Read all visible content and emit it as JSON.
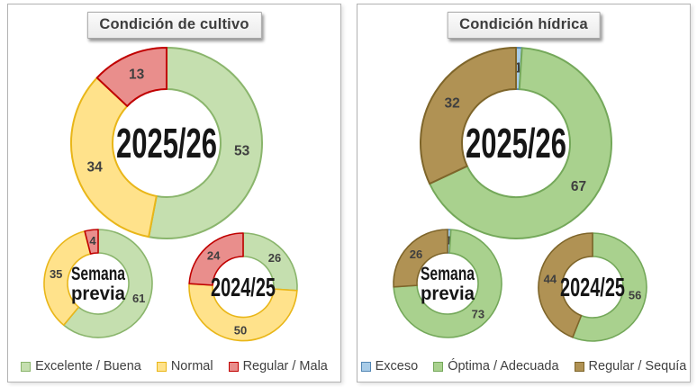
{
  "panels": [
    {
      "title": "Condición de cultivo",
      "legend_position": "bottom",
      "legend": [
        {
          "label": "Excelente / Buena",
          "fill": "#c5dfaf",
          "stroke": "#8ab56c"
        },
        {
          "label": "Normal",
          "fill": "#ffe28b",
          "stroke": "#e9b618"
        },
        {
          "label": "Regular / Mala",
          "fill": "#e98e8c",
          "stroke": "#c00000"
        }
      ]
    },
    {
      "title": "Condición hídrica",
      "legend_position": "bottom",
      "legend": [
        {
          "label": "Exceso",
          "fill": "#a8cce8",
          "stroke": "#5286b4"
        },
        {
          "label": "Óptima / Adecuada",
          "fill": "#a9d18e",
          "stroke": "#74a85a"
        },
        {
          "label": "Regular / Sequía",
          "fill": "#b09254",
          "stroke": "#7e652a"
        }
      ]
    }
  ],
  "chart_data": [
    {
      "type": "donut",
      "panel": 0,
      "slot": "main",
      "center_label": "2025/26",
      "categories": [
        "Excelente / Buena",
        "Normal",
        "Regular / Mala"
      ],
      "values": [
        53,
        34,
        13
      ],
      "unit": "%",
      "start_angle_deg": 0,
      "direction": "clockwise"
    },
    {
      "type": "donut",
      "panel": 0,
      "slot": "small-left",
      "center_label": "Semana previa",
      "categories": [
        "Excelente / Buena",
        "Normal",
        "Regular / Mala"
      ],
      "values": [
        61,
        35,
        4
      ],
      "unit": "%",
      "start_angle_deg": 0,
      "direction": "clockwise"
    },
    {
      "type": "donut",
      "panel": 0,
      "slot": "small-right",
      "center_label": "2024/25",
      "categories": [
        "Excelente / Buena",
        "Normal",
        "Regular / Mala"
      ],
      "values": [
        26,
        50,
        24
      ],
      "unit": "%",
      "start_angle_deg": 0,
      "direction": "clockwise"
    },
    {
      "type": "donut",
      "panel": 1,
      "slot": "main",
      "center_label": "2025/26",
      "categories": [
        "Exceso",
        "Óptima / Adecuada",
        "Regular / Sequía"
      ],
      "values": [
        1,
        67,
        32
      ],
      "unit": "%",
      "start_angle_deg": 0,
      "direction": "clockwise"
    },
    {
      "type": "donut",
      "panel": 1,
      "slot": "small-left",
      "center_label": "Semana previa",
      "categories": [
        "Exceso",
        "Óptima / Adecuada",
        "Regular / Sequía"
      ],
      "values": [
        1,
        73,
        26
      ],
      "unit": "%",
      "start_angle_deg": 0,
      "direction": "clockwise"
    },
    {
      "type": "donut",
      "panel": 1,
      "slot": "small-right",
      "center_label": "2024/25",
      "categories": [
        "Exceso",
        "Óptima / Adecuada",
        "Regular / Sequía"
      ],
      "values": [
        0,
        56,
        44
      ],
      "unit": "%",
      "start_angle_deg": 0,
      "direction": "clockwise"
    }
  ],
  "style": {
    "value_label_color": "#3f3f3f",
    "center_label_color": "#161616",
    "title_color": "#3d3d3d"
  }
}
